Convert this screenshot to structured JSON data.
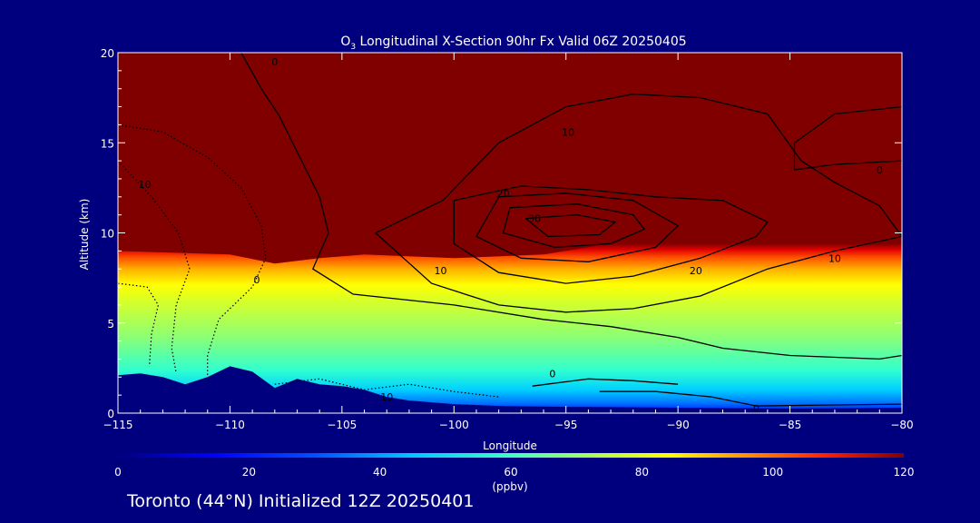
{
  "title_prefix": "O",
  "title_sub": "3",
  "title_rest": " Longitudinal X-Section 90hr  Fx Valid 06Z 20250405",
  "footer": "Toronto (44°N) Initialized 12Z 20250401",
  "colors": {
    "background": "#00007f",
    "terrain": "#00007f"
  },
  "chart_data": {
    "type": "heatmap",
    "xlabel": "Longitude",
    "ylabel": "Altitude (km)",
    "xlim": [
      -115,
      -80
    ],
    "ylim": [
      0,
      20
    ],
    "xticks": [
      -115,
      -110,
      -105,
      -100,
      -95,
      -90,
      -85,
      -80
    ],
    "xtick_labels": [
      "−115",
      "−110",
      "−105",
      "−100",
      "−95",
      "−90",
      "−85",
      "−80"
    ],
    "yticks": [
      0,
      5,
      10,
      15,
      20
    ],
    "ytick_labels": [
      "0",
      "5",
      "10",
      "15",
      "20"
    ],
    "colorbar": {
      "min": 0,
      "max": 120,
      "ticks": [
        0,
        20,
        40,
        60,
        80,
        100,
        120
      ],
      "tick_labels": [
        "0",
        "20",
        "40",
        "60",
        "80",
        "100",
        "120"
      ],
      "label": "(ppbv)"
    },
    "field_description_ppbv": {
      "stratosphere_ppbv": 120,
      "tropopause_height_km": [
        [
          -115,
          9.0
        ],
        [
          -110,
          8.8
        ],
        [
          -108,
          8.3
        ],
        [
          -106,
          8.6
        ],
        [
          -104,
          8.8
        ],
        [
          -100,
          8.6
        ],
        [
          -96,
          8.8
        ],
        [
          -92,
          9.6
        ],
        [
          -90,
          10.0
        ],
        [
          -86,
          10.4
        ],
        [
          -82,
          10.7
        ],
        [
          -80,
          10.8
        ]
      ],
      "surface_layer_ppbv": 25
    },
    "terrain_km": [
      [
        -115,
        2.1
      ],
      [
        -114,
        2.2
      ],
      [
        -113,
        2.0
      ],
      [
        -112,
        1.6
      ],
      [
        -111,
        2.0
      ],
      [
        -110,
        2.6
      ],
      [
        -109,
        2.3
      ],
      [
        -108,
        1.4
      ],
      [
        -107,
        1.9
      ],
      [
        -106,
        1.6
      ],
      [
        -105,
        1.5
      ],
      [
        -104,
        1.3
      ],
      [
        -103,
        0.9
      ],
      [
        -102,
        0.7
      ],
      [
        -100,
        0.5
      ],
      [
        -98,
        0.4
      ],
      [
        -95,
        0.35
      ],
      [
        -90,
        0.3
      ],
      [
        -85,
        0.25
      ],
      [
        -80,
        0.3
      ]
    ],
    "contours": [
      {
        "label": "0",
        "style": "solid",
        "points": [
          [
            -109.5,
            20
          ],
          [
            -108.6,
            18
          ],
          [
            -107.8,
            16.5
          ],
          [
            -106.8,
            14
          ],
          [
            -106.0,
            12
          ],
          [
            -105.6,
            10
          ],
          [
            -106.3,
            8
          ],
          [
            -104.5,
            6.6
          ],
          [
            -100,
            6.0
          ],
          [
            -96,
            5.2
          ],
          [
            -93,
            4.8
          ],
          [
            -90,
            4.2
          ],
          [
            -88,
            3.6
          ],
          [
            -85,
            3.2
          ],
          [
            -81,
            3.0
          ],
          [
            -80,
            3.2
          ]
        ]
      },
      {
        "label": "0",
        "style": "solid",
        "points": [
          [
            -93.5,
            1.2
          ],
          [
            -91,
            1.2
          ],
          [
            -88.5,
            0.9
          ],
          [
            -86.5,
            0.4
          ],
          [
            -80,
            0.5
          ]
        ]
      },
      {
        "label": "0",
        "style": "solid",
        "points": [
          [
            -96.5,
            1.5
          ],
          [
            -94,
            1.9
          ],
          [
            -92,
            1.8
          ],
          [
            -90,
            1.6
          ]
        ]
      },
      {
        "label": "0",
        "style": "solid",
        "points": [
          [
            -80,
            14.0
          ],
          [
            -83,
            13.8
          ],
          [
            -84.8,
            13.5
          ],
          [
            -84.8,
            15
          ],
          [
            -83,
            16.6
          ],
          [
            -80,
            17.0
          ]
        ]
      },
      {
        "label": "10",
        "style": "solid",
        "points": [
          [
            -103.5,
            10
          ],
          [
            -100.5,
            11.8
          ],
          [
            -98,
            15
          ],
          [
            -95,
            17
          ],
          [
            -92,
            17.7
          ],
          [
            -89,
            17.5
          ],
          [
            -86,
            16.6
          ],
          [
            -84.5,
            14
          ],
          [
            -83,
            12.8
          ],
          [
            -81,
            11.5
          ],
          [
            -80,
            9.8
          ],
          [
            -83,
            9.0
          ],
          [
            -86,
            8.0
          ],
          [
            -89,
            6.5
          ],
          [
            -92,
            5.8
          ],
          [
            -95,
            5.6
          ],
          [
            -98,
            6.0
          ],
          [
            -101,
            7.2
          ],
          [
            -103.5,
            10
          ]
        ]
      },
      {
        "label": "20",
        "style": "solid",
        "points": [
          [
            -100,
            11.8
          ],
          [
            -97,
            12.6
          ],
          [
            -94,
            12.4
          ],
          [
            -91,
            12.0
          ],
          [
            -88,
            11.8
          ],
          [
            -86,
            10.6
          ],
          [
            -86.5,
            9.8
          ],
          [
            -89,
            8.6
          ],
          [
            -92,
            7.6
          ],
          [
            -95,
            7.2
          ],
          [
            -98,
            7.8
          ],
          [
            -100,
            9.4
          ],
          [
            -100,
            11.8
          ]
        ]
      },
      {
        "label": "30",
        "style": "solid",
        "points": [
          [
            -98,
            12.0
          ],
          [
            -95,
            12.2
          ],
          [
            -92,
            11.8
          ],
          [
            -90,
            10.4
          ],
          [
            -91,
            9.2
          ],
          [
            -94,
            8.4
          ],
          [
            -97,
            8.6
          ],
          [
            -99,
            9.8
          ],
          [
            -98,
            12.0
          ]
        ]
      },
      {
        "label": "40",
        "style": "solid",
        "points": [
          [
            -97.5,
            11.4
          ],
          [
            -94.5,
            11.6
          ],
          [
            -92,
            11.0
          ],
          [
            -91.5,
            10.2
          ],
          [
            -93,
            9.4
          ],
          [
            -95.5,
            9.2
          ],
          [
            -97.8,
            10.0
          ],
          [
            -97.5,
            11.4
          ]
        ]
      },
      {
        "label": "50",
        "style": "solid",
        "points": [
          [
            -96.8,
            10.8
          ],
          [
            -94.5,
            11.0
          ],
          [
            -92.8,
            10.6
          ],
          [
            -93.5,
            9.9
          ],
          [
            -95.8,
            9.8
          ],
          [
            -96.8,
            10.8
          ]
        ]
      },
      {
        "label": "10",
        "style": "dotted",
        "points": [
          [
            -115,
            16.0
          ],
          [
            -113,
            15.6
          ],
          [
            -111,
            14.2
          ],
          [
            -109.5,
            12.5
          ],
          [
            -108.6,
            10.4
          ],
          [
            -108.4,
            8.6
          ],
          [
            -109,
            7.0
          ],
          [
            -110.5,
            5.2
          ],
          [
            -111,
            3.2
          ],
          [
            -111,
            2.0
          ]
        ]
      },
      {
        "label": "",
        "style": "dotted",
        "points": [
          [
            -115,
            14.0
          ],
          [
            -113.5,
            12.0
          ],
          [
            -112.3,
            10.0
          ],
          [
            -111.8,
            8.0
          ],
          [
            -112.4,
            6.0
          ],
          [
            -112.6,
            3.6
          ],
          [
            -112.4,
            2.2
          ]
        ]
      },
      {
        "label": "",
        "style": "dotted",
        "points": [
          [
            -115,
            7.2
          ],
          [
            -113.7,
            7.0
          ],
          [
            -113.2,
            6.0
          ],
          [
            -113.5,
            4.4
          ],
          [
            -113.6,
            2.6
          ]
        ]
      },
      {
        "label": "10",
        "style": "dotted",
        "points": [
          [
            -108,
            1.6
          ],
          [
            -106,
            1.9
          ],
          [
            -104,
            1.3
          ],
          [
            -102,
            1.6
          ],
          [
            -100,
            1.2
          ],
          [
            -98,
            0.9
          ]
        ]
      }
    ],
    "contour_labels": [
      {
        "text": "0",
        "x": -108.0,
        "y": 19.5
      },
      {
        "text": "10",
        "x": -113.8,
        "y": 12.7
      },
      {
        "text": "0",
        "x": -108.8,
        "y": 7.4
      },
      {
        "text": "10",
        "x": -100.6,
        "y": 7.9
      },
      {
        "text": "10",
        "x": -94.9,
        "y": 15.6
      },
      {
        "text": "20",
        "x": -97.8,
        "y": 12.2
      },
      {
        "text": "30",
        "x": -96.4,
        "y": 10.8
      },
      {
        "text": "20",
        "x": -89.2,
        "y": 7.9
      },
      {
        "text": "10",
        "x": -83.0,
        "y": 8.6
      },
      {
        "text": "0",
        "x": -95.6,
        "y": 2.2
      },
      {
        "text": "0",
        "x": -86.5,
        "y": 0.25
      },
      {
        "text": "10",
        "x": -103.0,
        "y": 0.9
      },
      {
        "text": "0",
        "x": -81.0,
        "y": 13.5
      }
    ]
  }
}
